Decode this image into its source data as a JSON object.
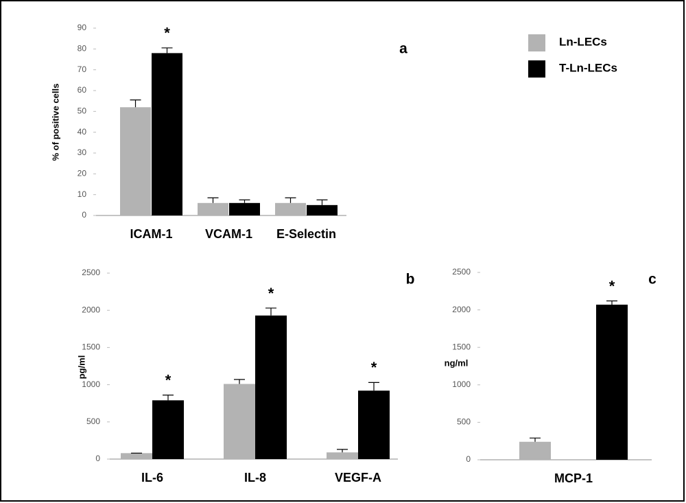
{
  "chart_data": [
    {
      "type": "bar",
      "panel_label": "a",
      "y_label": "% of positive cells",
      "categories": [
        "ICAM-1",
        "VCAM-1",
        "E-Selectin"
      ],
      "series": [
        {
          "name": "Ln-LECs",
          "color": "#b3b3b3",
          "values": [
            52,
            6,
            6
          ],
          "errors": [
            3.5,
            2.5,
            2.5
          ]
        },
        {
          "name": "T-Ln-LECs",
          "color": "#000000",
          "values": [
            78,
            6,
            5
          ],
          "errors": [
            2.5,
            1.5,
            2.5
          ]
        }
      ],
      "significance": [
        "*",
        null,
        null
      ],
      "ylim": [
        0,
        90
      ],
      "yticks": [
        0,
        10,
        20,
        30,
        40,
        50,
        60,
        70,
        80,
        90
      ],
      "legend": "upper right"
    },
    {
      "type": "bar",
      "panel_label": "b",
      "y_label": "pg/ml",
      "categories": [
        "IL-6",
        "IL-8",
        "VEGF-A"
      ],
      "series": [
        {
          "color": "#b3b3b3",
          "values": [
            80,
            1010,
            90
          ],
          "errors": [
            0,
            60,
            40
          ]
        },
        {
          "color": "#000000",
          "values": [
            790,
            1930,
            920
          ],
          "errors": [
            70,
            100,
            110
          ]
        }
      ],
      "significance": [
        "*",
        "*",
        "*"
      ],
      "ylim": [
        0,
        2500
      ],
      "yticks": [
        0,
        500,
        1000,
        1500,
        2000,
        2500
      ]
    },
    {
      "type": "bar",
      "panel_label": "c",
      "y_label": "ng/ml",
      "categories": [
        "MCP-1"
      ],
      "series": [
        {
          "color": "#b3b3b3",
          "values": [
            240
          ],
          "errors": [
            50
          ]
        },
        {
          "color": "#000000",
          "values": [
            2070
          ],
          "errors": [
            50
          ]
        }
      ],
      "significance": [
        "*"
      ],
      "ylim": [
        0,
        2500
      ],
      "yticks": [
        0,
        500,
        1000,
        1500,
        2000,
        2500
      ]
    }
  ]
}
